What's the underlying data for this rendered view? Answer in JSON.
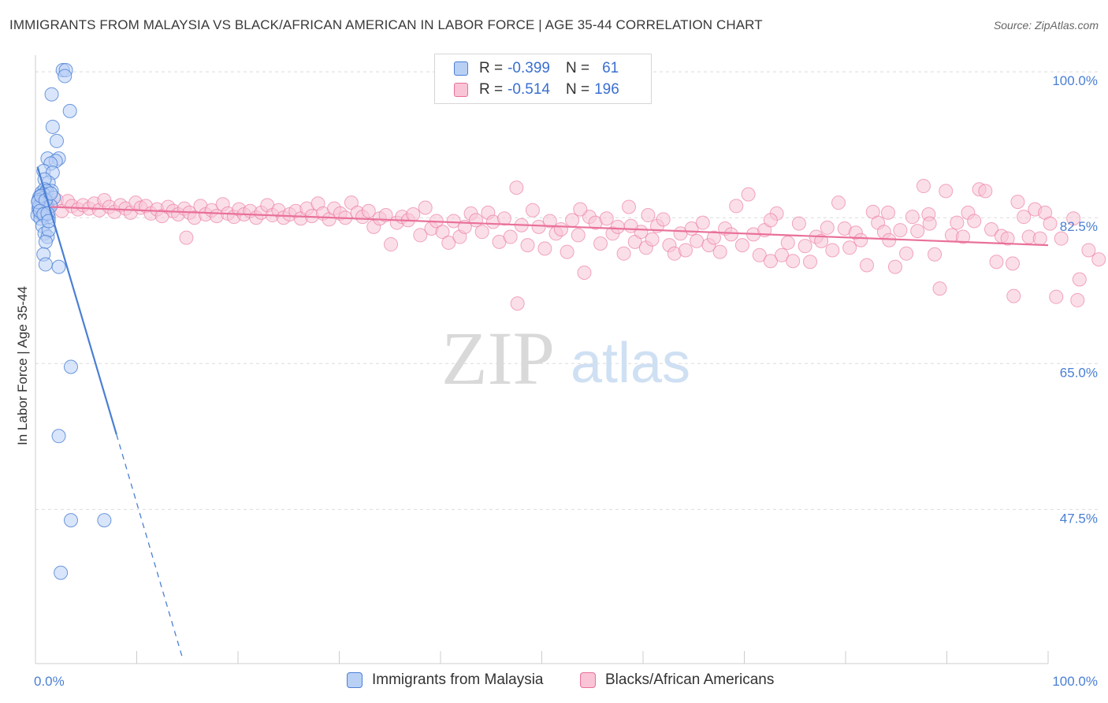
{
  "header": {
    "title": "IMMIGRANTS FROM MALAYSIA VS BLACK/AFRICAN AMERICAN IN LABOR FORCE | AGE 35-44 CORRELATION CHART",
    "source": "Source: ZipAtlas.com"
  },
  "watermark": {
    "zip": "ZIP",
    "atlas": "atlas"
  },
  "legend": {
    "r_label": "R =",
    "n_label": "N =",
    "rows": [
      {
        "r": "-0.399",
        "n": "61",
        "color": "#4a7fd4",
        "fill": "#b9d0f5"
      },
      {
        "r": "-0.514",
        "n": "196",
        "color": "#e9709a",
        "fill": "#f8c4d6"
      }
    ]
  },
  "bottom_legend": {
    "series_a": "Immigrants from Malaysia",
    "series_b": "Blacks/African Americans"
  },
  "chart_data": {
    "type": "scatter",
    "title": "IMMIGRANTS FROM MALAYSIA VS BLACK/AFRICAN AMERICAN IN LABOR FORCE | AGE 35-44 CORRELATION CHART",
    "xlabel": "",
    "ylabel": "In Labor Force | Age 35-44",
    "xlim": [
      0,
      100
    ],
    "ylim": [
      29,
      102
    ],
    "x_tick_labels": [
      "0.0%",
      "100.0%"
    ],
    "y_ticks": [
      47.5,
      65.0,
      82.5,
      100.0
    ],
    "y_tick_labels": [
      "47.5%",
      "65.0%",
      "82.5%",
      "100.0%"
    ],
    "grid": true,
    "series": [
      {
        "name": "Immigrants from Malaysia",
        "color": "#4a7fd4",
        "fill": "#b9d0f5",
        "r": -0.399,
        "n": 61,
        "trend": {
          "x0": 0.2,
          "y0": 88.6,
          "x1": 8.0,
          "y1": 56.5,
          "dash_x1": 14.5
        },
        "points": [
          [
            2.7,
            100.2
          ],
          [
            3.0,
            100.2
          ],
          [
            2.9,
            99.5
          ],
          [
            1.6,
            97.3
          ],
          [
            3.4,
            95.3
          ],
          [
            1.7,
            93.4
          ],
          [
            2.1,
            91.7
          ],
          [
            1.2,
            89.6
          ],
          [
            2.3,
            89.6
          ],
          [
            2.0,
            89.3
          ],
          [
            1.5,
            89.0
          ],
          [
            0.8,
            88.1
          ],
          [
            1.7,
            87.9
          ],
          [
            1.3,
            86.7
          ],
          [
            0.9,
            87.1
          ],
          [
            1.6,
            85.7
          ],
          [
            0.6,
            85.5
          ],
          [
            0.9,
            85.9
          ],
          [
            1.1,
            85.7
          ],
          [
            0.8,
            85.3
          ],
          [
            0.4,
            85.0
          ],
          [
            0.7,
            84.8
          ],
          [
            1.8,
            84.9
          ],
          [
            0.3,
            84.6
          ],
          [
            0.6,
            84.4
          ],
          [
            0.9,
            84.2
          ],
          [
            1.1,
            84.0
          ],
          [
            0.5,
            83.8
          ],
          [
            0.3,
            83.6
          ],
          [
            1.2,
            83.5
          ],
          [
            0.8,
            83.4
          ],
          [
            0.4,
            83.1
          ],
          [
            0.6,
            82.9
          ],
          [
            0.2,
            82.8
          ],
          [
            0.9,
            82.7
          ],
          [
            1.3,
            82.6
          ],
          [
            0.5,
            82.4
          ],
          [
            0.7,
            84.2
          ],
          [
            0.35,
            83.9
          ],
          [
            1.5,
            83.9
          ],
          [
            0.25,
            84.4
          ],
          [
            0.55,
            85.1
          ],
          [
            1.0,
            84.6
          ],
          [
            0.45,
            83.3
          ],
          [
            0.8,
            82.9
          ],
          [
            1.2,
            83.0
          ],
          [
            0.7,
            81.5
          ],
          [
            0.9,
            80.6
          ],
          [
            1.2,
            80.2
          ],
          [
            1.3,
            81.0
          ],
          [
            1.0,
            79.6
          ],
          [
            0.8,
            78.1
          ],
          [
            1.3,
            82.1
          ],
          [
            1.0,
            76.9
          ],
          [
            2.3,
            76.6
          ],
          [
            3.5,
            64.6
          ],
          [
            2.3,
            56.3
          ],
          [
            3.5,
            46.2
          ],
          [
            6.8,
            46.2
          ],
          [
            2.5,
            39.9
          ],
          [
            1.5,
            85.4
          ]
        ]
      },
      {
        "name": "Blacks/African Americans",
        "color": "#e9709a",
        "fill": "#f8c4d6",
        "r": -0.514,
        "n": 196,
        "trend": {
          "x0": 1.5,
          "y0": 83.8,
          "x1": 100.0,
          "y1": 79.2
        },
        "points": [
          [
            1.5,
            84.2
          ],
          [
            2.1,
            84.6
          ],
          [
            2.6,
            83.3
          ],
          [
            3.2,
            84.5
          ],
          [
            3.6,
            83.9
          ],
          [
            4.2,
            83.5
          ],
          [
            4.7,
            84.0
          ],
          [
            5.3,
            83.6
          ],
          [
            5.8,
            84.2
          ],
          [
            6.3,
            83.4
          ],
          [
            6.8,
            84.6
          ],
          [
            7.3,
            83.8
          ],
          [
            7.8,
            83.2
          ],
          [
            8.4,
            84.0
          ],
          [
            8.9,
            83.6
          ],
          [
            9.4,
            83.1
          ],
          [
            9.9,
            84.3
          ],
          [
            10.4,
            83.7
          ],
          [
            10.9,
            83.9
          ],
          [
            11.4,
            83.0
          ],
          [
            12.0,
            83.5
          ],
          [
            12.5,
            82.7
          ],
          [
            13.1,
            83.8
          ],
          [
            13.6,
            83.3
          ],
          [
            14.1,
            82.9
          ],
          [
            14.7,
            83.6
          ],
          [
            15.2,
            83.1
          ],
          [
            15.7,
            82.5
          ],
          [
            16.3,
            83.9
          ],
          [
            16.8,
            82.9
          ],
          [
            17.4,
            83.4
          ],
          [
            17.9,
            82.7
          ],
          [
            18.5,
            84.1
          ],
          [
            19.0,
            83.0
          ],
          [
            19.6,
            82.6
          ],
          [
            20.1,
            83.5
          ],
          [
            20.6,
            82.9
          ],
          [
            21.2,
            83.3
          ],
          [
            21.8,
            82.5
          ],
          [
            22.3,
            83.1
          ],
          [
            22.9,
            84.0
          ],
          [
            23.4,
            82.8
          ],
          [
            24.0,
            83.4
          ],
          [
            24.5,
            82.5
          ],
          [
            25.1,
            82.9
          ],
          [
            25.7,
            83.3
          ],
          [
            26.2,
            82.4
          ],
          [
            26.8,
            83.6
          ],
          [
            27.3,
            82.7
          ],
          [
            27.9,
            84.2
          ],
          [
            28.4,
            83.0
          ],
          [
            29.0,
            82.3
          ],
          [
            29.5,
            83.6
          ],
          [
            30.1,
            83.0
          ],
          [
            30.6,
            82.5
          ],
          [
            31.2,
            84.3
          ],
          [
            31.8,
            83.1
          ],
          [
            32.3,
            82.6
          ],
          [
            32.9,
            83.3
          ],
          [
            33.4,
            81.4
          ],
          [
            34.0,
            82.4
          ],
          [
            34.6,
            82.8
          ],
          [
            35.1,
            79.3
          ],
          [
            35.7,
            81.9
          ],
          [
            36.2,
            82.6
          ],
          [
            36.8,
            82.2
          ],
          [
            37.3,
            82.9
          ],
          [
            38.0,
            80.4
          ],
          [
            38.5,
            83.7
          ],
          [
            39.1,
            81.2
          ],
          [
            39.6,
            82.1
          ],
          [
            40.2,
            80.8
          ],
          [
            40.8,
            79.5
          ],
          [
            41.3,
            82.1
          ],
          [
            41.9,
            80.2
          ],
          [
            42.4,
            81.4
          ],
          [
            43.0,
            83.0
          ],
          [
            43.5,
            82.2
          ],
          [
            44.1,
            80.8
          ],
          [
            44.7,
            83.1
          ],
          [
            45.2,
            82.0
          ],
          [
            45.8,
            79.6
          ],
          [
            46.3,
            82.4
          ],
          [
            46.9,
            80.2
          ],
          [
            47.5,
            86.1
          ],
          [
            48.0,
            81.6
          ],
          [
            48.6,
            79.2
          ],
          [
            49.1,
            83.4
          ],
          [
            49.7,
            81.4
          ],
          [
            50.3,
            78.8
          ],
          [
            50.8,
            82.1
          ],
          [
            51.4,
            80.6
          ],
          [
            51.9,
            81.1
          ],
          [
            52.5,
            78.4
          ],
          [
            53.0,
            82.2
          ],
          [
            53.6,
            80.4
          ],
          [
            54.2,
            75.9
          ],
          [
            54.7,
            82.6
          ],
          [
            55.3,
            81.9
          ],
          [
            55.8,
            79.4
          ],
          [
            56.4,
            82.4
          ],
          [
            57.0,
            80.6
          ],
          [
            57.5,
            81.4
          ],
          [
            58.1,
            78.2
          ],
          [
            58.6,
            83.8
          ],
          [
            59.2,
            79.6
          ],
          [
            59.8,
            80.8
          ],
          [
            60.3,
            78.9
          ],
          [
            60.9,
            79.9
          ],
          [
            61.4,
            81.5
          ],
          [
            62.0,
            82.3
          ],
          [
            62.6,
            79.2
          ],
          [
            63.1,
            78.2
          ],
          [
            63.7,
            80.6
          ],
          [
            64.2,
            78.6
          ],
          [
            64.8,
            81.2
          ],
          [
            65.3,
            79.7
          ],
          [
            65.9,
            81.9
          ],
          [
            66.5,
            79.2
          ],
          [
            67.0,
            80.1
          ],
          [
            67.6,
            78.4
          ],
          [
            68.1,
            81.2
          ],
          [
            68.7,
            80.5
          ],
          [
            69.2,
            83.9
          ],
          [
            69.8,
            79.2
          ],
          [
            70.4,
            85.3
          ],
          [
            70.9,
            80.5
          ],
          [
            71.5,
            78.0
          ],
          [
            72.0,
            81.0
          ],
          [
            72.6,
            77.3
          ],
          [
            73.2,
            83.0
          ],
          [
            73.7,
            78.0
          ],
          [
            74.3,
            79.5
          ],
          [
            74.8,
            77.3
          ],
          [
            75.4,
            81.8
          ],
          [
            76.0,
            79.1
          ],
          [
            76.5,
            77.2
          ],
          [
            77.1,
            80.2
          ],
          [
            77.6,
            79.7
          ],
          [
            78.2,
            81.3
          ],
          [
            78.7,
            78.6
          ],
          [
            79.3,
            84.3
          ],
          [
            79.9,
            81.2
          ],
          [
            80.4,
            78.9
          ],
          [
            81.0,
            80.7
          ],
          [
            81.5,
            79.8
          ],
          [
            82.1,
            76.8
          ],
          [
            82.7,
            83.2
          ],
          [
            83.2,
            81.9
          ],
          [
            83.8,
            80.8
          ],
          [
            84.3,
            79.8
          ],
          [
            84.9,
            76.6
          ],
          [
            85.4,
            81.0
          ],
          [
            86.0,
            78.2
          ],
          [
            86.6,
            82.6
          ],
          [
            87.1,
            80.9
          ],
          [
            87.7,
            86.3
          ],
          [
            88.2,
            82.9
          ],
          [
            88.8,
            78.1
          ],
          [
            89.3,
            74.0
          ],
          [
            89.9,
            85.7
          ],
          [
            90.5,
            80.4
          ],
          [
            91.0,
            81.9
          ],
          [
            91.6,
            80.2
          ],
          [
            92.1,
            83.1
          ],
          [
            92.7,
            82.1
          ],
          [
            93.2,
            85.9
          ],
          [
            93.8,
            85.7
          ],
          [
            94.4,
            81.1
          ],
          [
            94.9,
            77.2
          ],
          [
            95.4,
            80.3
          ],
          [
            96.0,
            80.0
          ],
          [
            96.5,
            77.0
          ],
          [
            97.0,
            84.4
          ],
          [
            97.6,
            82.6
          ],
          [
            98.1,
            80.2
          ],
          [
            98.7,
            83.5
          ],
          [
            99.2,
            80.0
          ],
          [
            99.7,
            83.1
          ],
          [
            100.2,
            81.8
          ],
          [
            101.3,
            80.0
          ],
          [
            102.5,
            82.4
          ],
          [
            104.0,
            78.6
          ],
          [
            105.0,
            77.5
          ],
          [
            103.1,
            75.1
          ],
          [
            96.6,
            73.1
          ],
          [
            47.6,
            72.2
          ],
          [
            100.8,
            73.0
          ],
          [
            102.9,
            72.6
          ],
          [
            14.9,
            80.1
          ],
          [
            88.3,
            81.8
          ],
          [
            84.2,
            83.1
          ],
          [
            53.8,
            83.5
          ],
          [
            60.5,
            82.8
          ],
          [
            72.6,
            82.2
          ],
          [
            58.8,
            81.5
          ]
        ]
      }
    ]
  }
}
